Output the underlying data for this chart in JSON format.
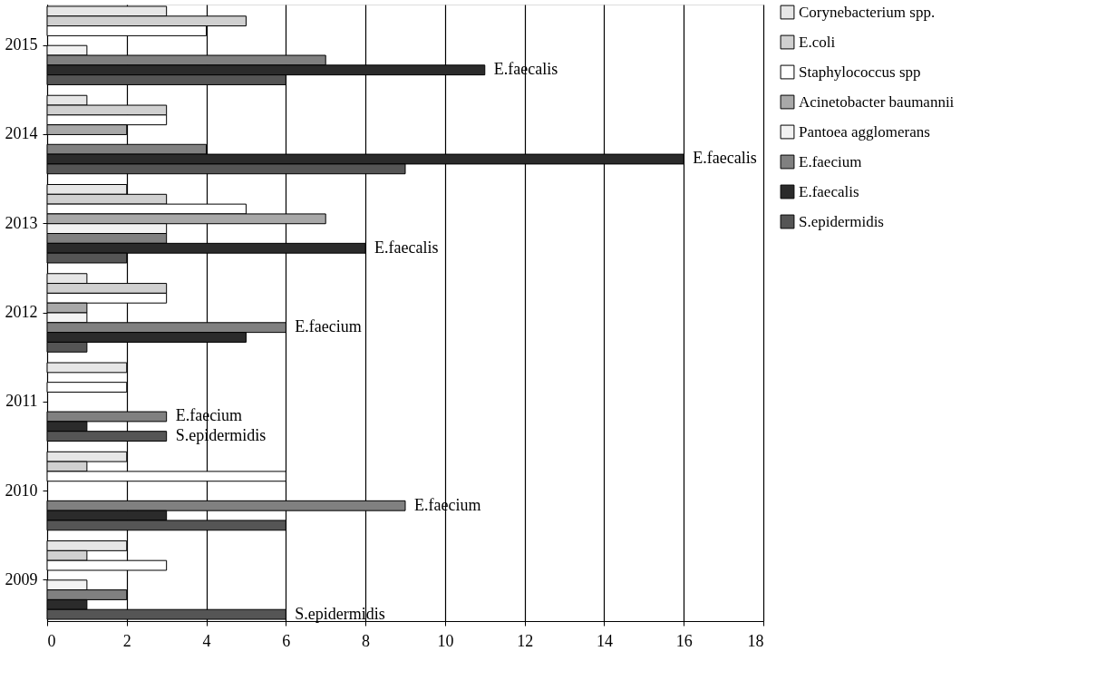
{
  "chart_data": {
    "type": "bar",
    "orientation": "horizontal",
    "categories": [
      "2015",
      "2014",
      "2013",
      "2012",
      "2011",
      "2010",
      "2009"
    ],
    "series": [
      {
        "name": "Corynebacterium spp.",
        "color": "#e6e6e6",
        "values": [
          3,
          1,
          2,
          1,
          2,
          2,
          2
        ]
      },
      {
        "name": "E.coli",
        "color": "#d0d0d0",
        "values": [
          5,
          3,
          3,
          3,
          null,
          1,
          1
        ]
      },
      {
        "name": "Staphylococcus spp",
        "color": "#ffffff",
        "values": [
          4,
          3,
          5,
          3,
          2,
          6,
          3
        ]
      },
      {
        "name": "Acinetobacter baumannii",
        "color": "#a8a8a8",
        "values": [
          null,
          2,
          7,
          1,
          null,
          null,
          null
        ]
      },
      {
        "name": "Pantoea agglomerans",
        "color": "#f2f2f2",
        "values": [
          1,
          null,
          3,
          1,
          null,
          null,
          1
        ]
      },
      {
        "name": "E.faecium",
        "color": "#808080",
        "values": [
          7,
          4,
          3,
          6,
          3,
          9,
          2
        ],
        "value_labels": [
          null,
          null,
          null,
          "E.faecium",
          "E.faecium",
          "E.faecium",
          null
        ]
      },
      {
        "name": "E.faecalis",
        "color": "#2b2b2b",
        "values": [
          11,
          16,
          8,
          5,
          1,
          3,
          1
        ],
        "value_labels": [
          "E.faecalis",
          "E.faecalis",
          "E.faecalis",
          null,
          null,
          null,
          null
        ]
      },
      {
        "name": "S.epidermidis",
        "color": "#555555",
        "values": [
          6,
          9,
          2,
          1,
          3,
          6,
          6
        ],
        "value_labels": [
          null,
          null,
          null,
          null,
          "S.epidermidis",
          null,
          "S.epidermidis"
        ]
      }
    ],
    "xlim": [
      0,
      18
    ],
    "xticks": [
      0,
      2,
      4,
      6,
      8,
      10,
      12,
      14,
      16,
      18
    ],
    "grid": "x",
    "legend": "right"
  }
}
